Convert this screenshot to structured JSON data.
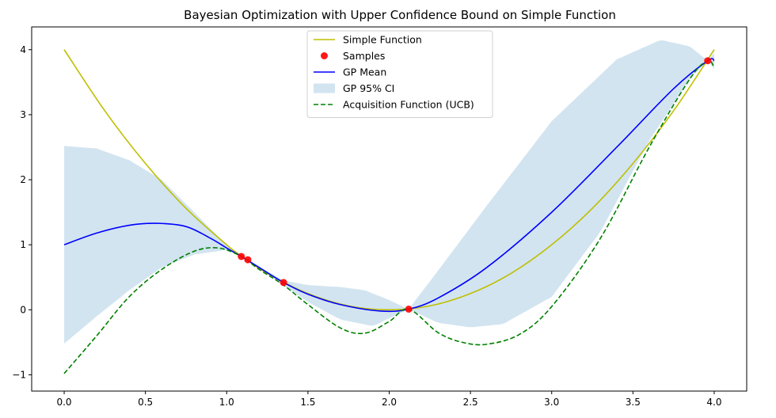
{
  "chart_data": {
    "type": "line",
    "title": "Bayesian Optimization with Upper Confidence Bound on Simple Function",
    "xlabel": "",
    "ylabel": "",
    "xlim": [
      -0.2,
      4.2
    ],
    "ylim": [
      -1.25,
      4.35
    ],
    "xticks": [
      0.0,
      0.5,
      1.0,
      1.5,
      2.0,
      2.5,
      3.0,
      3.5,
      4.0
    ],
    "xtick_labels": [
      "0.0",
      "0.5",
      "1.0",
      "1.5",
      "2.0",
      "2.5",
      "3.0",
      "3.5",
      "4.0"
    ],
    "yticks": [
      -1,
      0,
      1,
      2,
      3,
      4
    ],
    "ytick_labels": [
      "−1",
      "0",
      "1",
      "2",
      "3",
      "4"
    ],
    "grid": false,
    "legend_position": "top-center",
    "legend": [
      {
        "label": "Simple Function",
        "kind": "line",
        "color": "#bfbf00"
      },
      {
        "label": "Samples",
        "kind": "marker",
        "color": "#ff0000"
      },
      {
        "label": "GP Mean",
        "kind": "line",
        "color": "#0000ff"
      },
      {
        "label": "GP 95% CI",
        "kind": "patch",
        "color": "#1f77b4"
      },
      {
        "label": "Acquisition Function (UCB)",
        "kind": "dashed",
        "color": "#008000"
      }
    ],
    "series": [
      {
        "name": "Simple Function",
        "color": "#bfbf00",
        "x": [
          0.0,
          0.25,
          0.5,
          0.75,
          1.0,
          1.1,
          1.25,
          1.5,
          1.75,
          2.0,
          2.25,
          2.5,
          2.75,
          3.0,
          3.25,
          3.5,
          3.75,
          4.0
        ],
        "y": [
          4.0,
          3.06,
          2.25,
          1.56,
          1.0,
          0.81,
          0.56,
          0.25,
          0.06,
          0.0,
          0.06,
          0.25,
          0.56,
          1.0,
          1.56,
          2.25,
          3.06,
          4.0
        ]
      },
      {
        "name": "GP Mean",
        "color": "#0000ff",
        "x": [
          0.0,
          0.2,
          0.4,
          0.57,
          0.75,
          0.9,
          1.0,
          1.09,
          1.2,
          1.35,
          1.5,
          1.7,
          1.95,
          2.12,
          2.3,
          2.6,
          3.0,
          3.4,
          3.75,
          3.96,
          4.0
        ],
        "y": [
          1.0,
          1.18,
          1.3,
          1.33,
          1.28,
          1.1,
          0.95,
          0.82,
          0.65,
          0.42,
          0.24,
          0.08,
          -0.02,
          0.01,
          0.18,
          0.65,
          1.5,
          2.5,
          3.4,
          3.83,
          3.83
        ]
      },
      {
        "name": "GP 95% CI upper",
        "color": "#1f77b4",
        "x": [
          0.0,
          0.2,
          0.4,
          0.6,
          0.8,
          1.0,
          1.09,
          1.13,
          1.35,
          1.5,
          1.7,
          1.85,
          2.0,
          2.12,
          2.3,
          2.6,
          3.0,
          3.4,
          3.67,
          3.85,
          3.96,
          4.0
        ],
        "y": [
          2.52,
          2.48,
          2.3,
          2.0,
          1.5,
          1.0,
          0.82,
          0.77,
          0.45,
          0.38,
          0.35,
          0.3,
          0.15,
          0.01,
          0.6,
          1.6,
          2.9,
          3.85,
          4.15,
          4.05,
          3.83,
          3.7
        ]
      },
      {
        "name": "GP 95% CI lower",
        "color": "#1f77b4",
        "x": [
          0.0,
          0.2,
          0.4,
          0.6,
          0.8,
          1.0,
          1.09,
          1.13,
          1.35,
          1.5,
          1.7,
          1.9,
          2.12,
          2.3,
          2.5,
          2.7,
          3.0,
          3.3,
          3.6,
          3.85,
          3.96,
          4.0
        ],
        "y": [
          -0.52,
          -0.1,
          0.3,
          0.65,
          0.85,
          0.92,
          0.82,
          0.77,
          0.38,
          0.12,
          -0.15,
          -0.25,
          0.01,
          -0.2,
          -0.27,
          -0.22,
          0.2,
          1.2,
          2.6,
          3.55,
          3.83,
          3.95
        ]
      },
      {
        "name": "Acquisition Function (UCB)",
        "color": "#008000",
        "x": [
          0.0,
          0.2,
          0.4,
          0.6,
          0.8,
          0.95,
          1.09,
          1.2,
          1.35,
          1.5,
          1.7,
          1.85,
          2.0,
          2.12,
          2.3,
          2.45,
          2.6,
          2.8,
          3.0,
          3.3,
          3.6,
          3.85,
          3.96,
          4.0
        ],
        "y": [
          -0.98,
          -0.4,
          0.2,
          0.62,
          0.9,
          0.95,
          0.82,
          0.62,
          0.38,
          0.08,
          -0.28,
          -0.36,
          -0.18,
          0.01,
          -0.35,
          -0.5,
          -0.53,
          -0.38,
          0.05,
          1.1,
          2.5,
          3.55,
          3.83,
          3.72
        ]
      }
    ],
    "samples": {
      "name": "Samples",
      "color": "#ff0000",
      "x": [
        1.09,
        1.13,
        1.35,
        2.12,
        3.96
      ],
      "y": [
        0.82,
        0.77,
        0.42,
        0.01,
        3.83
      ]
    }
  }
}
